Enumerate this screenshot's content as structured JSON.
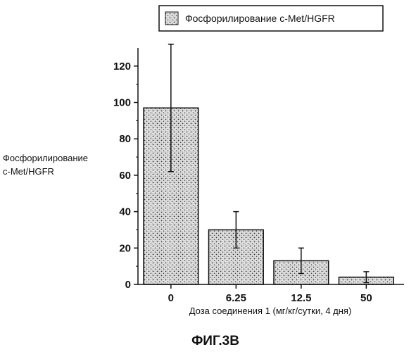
{
  "chart_data": {
    "type": "bar",
    "categories": [
      "0",
      "6.25",
      "12.5",
      "50"
    ],
    "series": [
      {
        "name": "Фосфорилирование c-Met/HGFR",
        "values": [
          97,
          30,
          13,
          4
        ],
        "error": [
          35,
          10,
          7,
          3
        ]
      }
    ],
    "ylabel": [
      "Фосфорилирование",
      "c-Met/HGFR"
    ],
    "xlabel": "Доза соединения 1 (мг/кг/сутки, 4 дня)",
    "ylim": [
      0,
      130
    ],
    "yticks": [
      0,
      20,
      40,
      60,
      80,
      100,
      120
    ],
    "grid": false,
    "legend_position": "top"
  },
  "figure_label": "ФИГ.3B",
  "colors": {
    "bar_fill": "#bdbdbd",
    "ink": "#111111"
  }
}
